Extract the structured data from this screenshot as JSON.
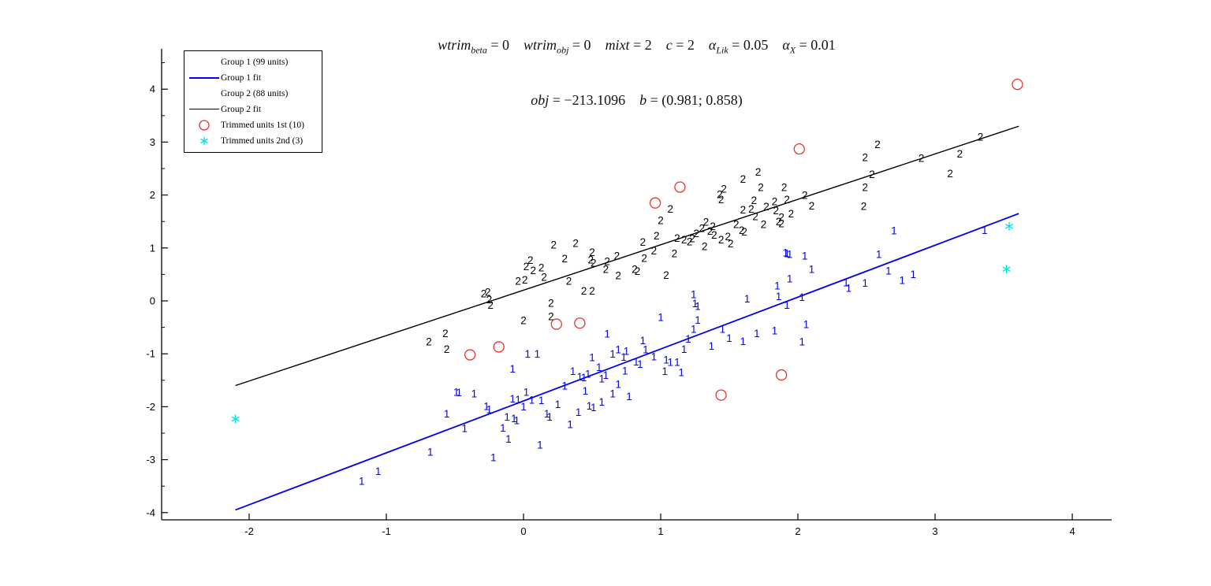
{
  "figure": {
    "background": "#ffffff",
    "title": {
      "line1": [
        {
          "t": "wtrim",
          "i": true
        },
        {
          "t": "beta",
          "i": true,
          "sub": true
        },
        {
          "t": " = 0"
        },
        {
          "t": "    "
        },
        {
          "t": "wtrim",
          "i": true
        },
        {
          "t": "obj",
          "i": true,
          "sub": true
        },
        {
          "t": " = 0"
        },
        {
          "t": "    "
        },
        {
          "t": "mixt",
          "i": true
        },
        {
          "t": " = 2"
        },
        {
          "t": "    "
        },
        {
          "t": "c",
          "i": true
        },
        {
          "t": " = 2"
        },
        {
          "t": "    "
        },
        {
          "t": "α",
          "i": true
        },
        {
          "t": "Lik",
          "i": true,
          "sub": true
        },
        {
          "t": " = 0.05"
        },
        {
          "t": "    "
        },
        {
          "t": "α",
          "i": true
        },
        {
          "t": "X",
          "i": true,
          "sub": true
        },
        {
          "t": " = 0.01"
        }
      ],
      "line2": [
        {
          "t": "obj",
          "i": true
        },
        {
          "t": " = −213.1096"
        },
        {
          "t": "    "
        },
        {
          "t": "b",
          "i": true
        },
        {
          "t": " = (0.981; 0.858)"
        }
      ]
    },
    "legend": {
      "items": [
        {
          "label": "Group 1 (99 units)",
          "marker": "none",
          "color": "#0000ee"
        },
        {
          "label": "Group 1 fit",
          "marker": "line",
          "color": "#0000ee",
          "line_width": 2
        },
        {
          "label": "Group 2 (88 units)",
          "marker": "none",
          "color": "#000000"
        },
        {
          "label": "Group 2 fit",
          "marker": "line",
          "color": "#000000",
          "line_width": 1.5
        },
        {
          "label": "Trimmed units 1st (10)",
          "marker": "circle",
          "color": "#e63232"
        },
        {
          "label": "Trimmed units 2nd (3)",
          "marker": "asterisk",
          "color": "#00e0e0"
        }
      ]
    }
  },
  "chart_data": {
    "type": "scatter",
    "title": "wtrim_beta = 0  wtrim_obj = 0  mixt = 2  c = 2  alpha_Lik = 0.05  alpha_X = 0.01 / obj = -213.1096  b = (0.981; 0.858)",
    "xlabel": "",
    "ylabel": "",
    "grid": false,
    "legend_position": "top-left",
    "x_ticks": [
      -2,
      -1,
      0,
      1,
      2,
      3,
      4
    ],
    "y_ticks": [
      -4,
      -3,
      -2,
      -1,
      0,
      1,
      2,
      3,
      4
    ],
    "x_range": [
      -2.638,
      4.287
    ],
    "y_range": [
      -4.137,
      4.762
    ],
    "y_minor_tick_step": 0.5,
    "series": [
      {
        "name": "Group 1 (99 units)",
        "kind": "scatter",
        "glyph": "1",
        "color": "#0000ee",
        "points": [
          [
            2.7,
            1.33
          ],
          [
            1.91,
            0.91
          ],
          [
            1.94,
            0.88
          ],
          [
            2.05,
            0.85
          ],
          [
            2.59,
            0.88
          ],
          [
            2.66,
            0.57
          ],
          [
            1.94,
            0.42
          ],
          [
            1.85,
            0.29
          ],
          [
            1.24,
            0.12
          ],
          [
            1.63,
            0.04
          ],
          [
            1.86,
            0.09
          ],
          [
            2.35,
            0.35
          ],
          [
            2.37,
            0.24
          ],
          [
            2.49,
            0.34
          ],
          [
            2.76,
            0.39
          ],
          [
            2.03,
            0.07
          ],
          [
            1.92,
            -0.08
          ],
          [
            1.25,
            -0.05
          ],
          [
            1.27,
            -0.1
          ],
          [
            1.0,
            -0.31
          ],
          [
            1.27,
            -0.36
          ],
          [
            3.36,
            1.34
          ],
          [
            2.84,
            0.5
          ],
          [
            0.61,
            -0.62
          ],
          [
            0.03,
            -1.0
          ],
          [
            0.1,
            -1.0
          ],
          [
            0.5,
            -1.07
          ],
          [
            0.65,
            -1.0
          ],
          [
            0.69,
            -0.92
          ],
          [
            -0.08,
            -1.28
          ],
          [
            0.36,
            -1.33
          ],
          [
            0.41,
            -1.43
          ],
          [
            0.44,
            -1.45
          ],
          [
            0.47,
            -1.38
          ],
          [
            0.57,
            -1.47
          ],
          [
            0.69,
            -1.57
          ],
          [
            0.65,
            -1.75
          ],
          [
            0.48,
            -1.98
          ],
          [
            0.51,
            -2.01
          ],
          [
            0.57,
            -1.91
          ],
          [
            -0.49,
            -1.72
          ],
          [
            -0.47,
            -1.73
          ],
          [
            -0.36,
            -1.75
          ],
          [
            -0.27,
            -1.99
          ],
          [
            -0.25,
            -2.05
          ],
          [
            -0.12,
            -2.19
          ],
          [
            -0.07,
            -2.22
          ],
          [
            -0.05,
            -2.26
          ],
          [
            0.02,
            -1.72
          ],
          [
            -0.08,
            -1.85
          ],
          [
            -0.04,
            -1.86
          ],
          [
            0.06,
            -1.87
          ],
          [
            0.13,
            -1.88
          ],
          [
            0.17,
            -2.13
          ],
          [
            0.19,
            -2.19
          ],
          [
            0.34,
            -2.33
          ],
          [
            -0.56,
            -2.13
          ],
          [
            -0.43,
            -2.41
          ],
          [
            -0.11,
            -2.61
          ],
          [
            0.12,
            -2.72
          ],
          [
            -0.68,
            -2.85
          ],
          [
            -0.22,
            -2.96
          ],
          [
            -1.06,
            -3.22
          ],
          [
            -1.18,
            -3.4
          ],
          [
            0.87,
            -0.75
          ],
          [
            0.89,
            -0.92
          ],
          [
            0.73,
            -1.06
          ],
          [
            0.82,
            -1.15
          ],
          [
            0.85,
            -1.19
          ],
          [
            0.74,
            -1.32
          ],
          [
            1.04,
            -1.11
          ],
          [
            1.07,
            -1.16
          ],
          [
            1.12,
            -1.16
          ],
          [
            1.03,
            -1.33
          ],
          [
            1.17,
            -0.91
          ],
          [
            1.2,
            -0.72
          ],
          [
            1.24,
            -0.53
          ],
          [
            1.37,
            -0.85
          ],
          [
            1.45,
            -0.53
          ],
          [
            1.6,
            -0.76
          ],
          [
            1.7,
            -0.61
          ],
          [
            1.83,
            -0.56
          ],
          [
            2.03,
            -0.77
          ],
          [
            2.06,
            -0.44
          ],
          [
            0.77,
            -1.8
          ],
          [
            0.95,
            -1.05
          ],
          [
            1.15,
            -1.35
          ],
          [
            0.55,
            -1.25
          ],
          [
            0.3,
            -1.6
          ],
          [
            0.0,
            -2.0
          ],
          [
            0.25,
            -1.95
          ],
          [
            0.45,
            -1.7
          ],
          [
            0.75,
            -0.95
          ],
          [
            1.5,
            -0.7
          ],
          [
            1.92,
            0.9
          ],
          [
            2.1,
            0.6
          ],
          [
            0.4,
            -2.1
          ],
          [
            -0.15,
            -2.4
          ],
          [
            0.6,
            -1.4
          ]
        ]
      },
      {
        "name": "Group 1 fit",
        "kind": "line",
        "color": "#0000ee",
        "width": 1.8,
        "slope": 0.981,
        "from": [
          -2.1,
          -3.95
        ],
        "to": [
          3.61,
          1.65
        ]
      },
      {
        "name": "Group 2 (88 units)",
        "kind": "scatter",
        "glyph": "2",
        "color": "#000000",
        "points": [
          [
            0.22,
            1.06
          ],
          [
            0.38,
            1.09
          ],
          [
            0.5,
            0.92
          ],
          [
            0.49,
            0.78
          ],
          [
            0.51,
            0.72
          ],
          [
            0.61,
            0.75
          ],
          [
            0.68,
            0.85
          ],
          [
            0.05,
            0.77
          ],
          [
            0.02,
            0.65
          ],
          [
            0.07,
            0.58
          ],
          [
            0.13,
            0.63
          ],
          [
            -0.04,
            0.38
          ],
          [
            0.01,
            0.4
          ],
          [
            0.33,
            0.38
          ],
          [
            0.44,
            0.19
          ],
          [
            0.5,
            0.19
          ],
          [
            0.69,
            0.48
          ],
          [
            -0.29,
            0.14
          ],
          [
            -0.26,
            0.17
          ],
          [
            -0.25,
            0.03
          ],
          [
            -0.24,
            -0.08
          ],
          [
            0.2,
            -0.04
          ],
          [
            0.0,
            -0.37
          ],
          [
            0.2,
            -0.29
          ],
          [
            2.58,
            2.96
          ],
          [
            2.49,
            2.71
          ],
          [
            2.54,
            2.39
          ],
          [
            2.49,
            2.15
          ],
          [
            2.48,
            1.79
          ],
          [
            2.1,
            1.8
          ],
          [
            1.71,
            2.44
          ],
          [
            1.6,
            2.3
          ],
          [
            1.73,
            2.15
          ],
          [
            1.9,
            2.15
          ],
          [
            1.83,
            1.88
          ],
          [
            1.92,
            1.92
          ],
          [
            1.46,
            2.12
          ],
          [
            1.43,
            2.01
          ],
          [
            1.44,
            1.92
          ],
          [
            1.6,
            1.72
          ],
          [
            1.66,
            1.74
          ],
          [
            1.69,
            1.6
          ],
          [
            1.84,
            1.71
          ],
          [
            1.88,
            1.58
          ],
          [
            1.75,
            1.45
          ],
          [
            1.86,
            1.5
          ],
          [
            1.88,
            1.46
          ],
          [
            1.59,
            1.34
          ],
          [
            1.61,
            1.31
          ],
          [
            1.07,
            1.74
          ],
          [
            1.0,
            1.52
          ],
          [
            0.97,
            1.23
          ],
          [
            0.87,
            1.11
          ],
          [
            0.88,
            0.81
          ],
          [
            0.81,
            0.6
          ],
          [
            0.83,
            0.56
          ],
          [
            1.04,
            0.49
          ],
          [
            1.12,
            1.19
          ],
          [
            1.17,
            1.16
          ],
          [
            1.23,
            1.18
          ],
          [
            1.33,
            1.49
          ],
          [
            1.38,
            1.41
          ],
          [
            1.3,
            1.37
          ],
          [
            1.36,
            1.32
          ],
          [
            1.39,
            1.25
          ],
          [
            1.44,
            1.16
          ],
          [
            1.51,
            1.08
          ],
          [
            1.32,
            1.03
          ],
          [
            3.33,
            3.1
          ],
          [
            3.18,
            2.78
          ],
          [
            2.9,
            2.7
          ],
          [
            3.11,
            2.41
          ],
          [
            -0.69,
            -0.77
          ],
          [
            -0.57,
            -0.61
          ],
          [
            -0.56,
            -0.91
          ],
          [
            1.26,
            1.28
          ],
          [
            1.21,
            1.12
          ],
          [
            1.49,
            1.22
          ],
          [
            1.55,
            1.45
          ],
          [
            1.68,
            1.9
          ],
          [
            1.77,
            1.78
          ],
          [
            1.95,
            1.65
          ],
          [
            2.05,
            2.0
          ],
          [
            0.95,
            0.95
          ],
          [
            1.1,
            0.9
          ],
          [
            0.6,
            0.6
          ],
          [
            0.3,
            0.8
          ],
          [
            0.15,
            0.45
          ]
        ]
      },
      {
        "name": "Group 2 fit",
        "kind": "line",
        "color": "#000000",
        "width": 1.4,
        "slope": 0.858,
        "from": [
          -2.1,
          -1.6
        ],
        "to": [
          3.61,
          3.3
        ]
      },
      {
        "name": "Trimmed units 1st (10)",
        "kind": "scatter",
        "glyph": "circle",
        "color": "#e63232",
        "points": [
          [
            3.6,
            4.09
          ],
          [
            2.01,
            2.87
          ],
          [
            1.14,
            2.15
          ],
          [
            0.96,
            1.85
          ],
          [
            0.24,
            -0.44
          ],
          [
            0.41,
            -0.42
          ],
          [
            -0.39,
            -1.02
          ],
          [
            -0.18,
            -0.87
          ],
          [
            1.88,
            -1.4
          ],
          [
            1.44,
            -1.78
          ]
        ]
      },
      {
        "name": "Trimmed units 2nd (3)",
        "kind": "scatter",
        "glyph": "asterisk",
        "color": "#00e0e0",
        "points": [
          [
            -2.1,
            -2.23
          ],
          [
            3.54,
            1.41
          ],
          [
            3.52,
            0.6
          ]
        ]
      }
    ]
  }
}
